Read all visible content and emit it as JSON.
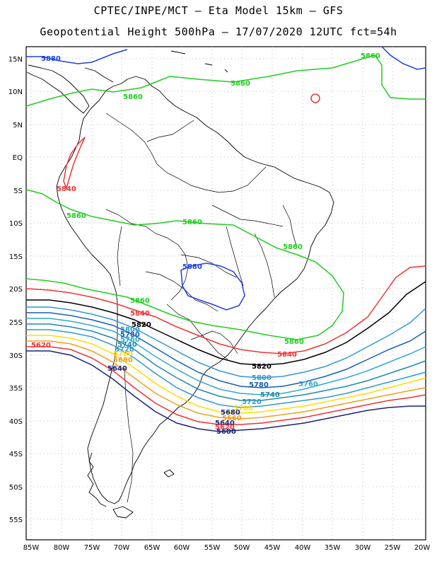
{
  "header": {
    "title_line1": "CPTEC/INPE/MCT –  Eta Model 15km – GFS",
    "title_line2": "Geopotential Height 500hPa – 17/07/2020 12UTC fct=54h"
  },
  "map": {
    "lon_labels": [
      "85W",
      "80W",
      "75W",
      "70W",
      "65W",
      "60W",
      "55W",
      "50W",
      "45W",
      "40W",
      "35W",
      "30W",
      "25W",
      "20W"
    ],
    "lat_labels": [
      "15N",
      "10N",
      "5N",
      "EQ",
      "5S",
      "10S",
      "15S",
      "20S",
      "25S",
      "30S",
      "35S",
      "40S",
      "45S",
      "50S",
      "55S"
    ],
    "lon_range": [
      -86,
      -20
    ],
    "lat_range": [
      17,
      -58
    ]
  },
  "contours": [
    {
      "level": "5880",
      "color": "#2040e0"
    },
    {
      "level": "5860",
      "color": "#22cc22"
    },
    {
      "level": "5840",
      "color": "#ee3333"
    },
    {
      "level": "5820",
      "color": "#000000"
    },
    {
      "level": "5800",
      "color": "#3399cc"
    },
    {
      "level": "5780",
      "color": "#1a5fb4"
    },
    {
      "level": "5760",
      "color": "#33aacc"
    },
    {
      "level": "5740",
      "color": "#2288aa"
    },
    {
      "level": "5720",
      "color": "#3399cc"
    },
    {
      "level": "5700",
      "color": "#ffdd00"
    },
    {
      "level": "5680",
      "color": "#f0a020"
    },
    {
      "level": "5660",
      "color": "#ee3333"
    },
    {
      "level": "5640",
      "color": "#1a237e"
    }
  ],
  "labels": {
    "l5880_n": "5880",
    "l5860_ne": "5860",
    "l5860_car": "5860",
    "l5860_col": "5860",
    "l5840_ec": "5840",
    "l5860_pe": "5860",
    "l5860_br": "5860",
    "l5860_nebr": "5860",
    "l5880_br": "5880",
    "l5860_chile": "5860",
    "l5840_arg": "5840",
    "l5820_arg": "5820",
    "l5800_arg": "5800",
    "l5780_arg": "5780",
    "l5760_arg": "5760",
    "l5740_arg": "5740",
    "l5720_arg": "5720",
    "l5700_arg": "5700",
    "l5680_arg": "5680",
    "l5660_arg": "5660",
    "l5620_arg": "5620",
    "l5640_arg": "5640",
    "l5860_atl": "5860",
    "l5840_atl": "5840",
    "l5820_atl": "5820",
    "l5800_atl": "5800",
    "l5780_atl": "5780",
    "l5760_atl": "5760",
    "l5740_atl": "5740",
    "l5720_atl": "5720",
    "l5700_atl": "5700",
    "l5680_atl": "5680",
    "l5660_atl": "5660",
    "l5640_atl": "5640",
    "l5620_atl": "5620",
    "l5600_atl": "5600"
  }
}
